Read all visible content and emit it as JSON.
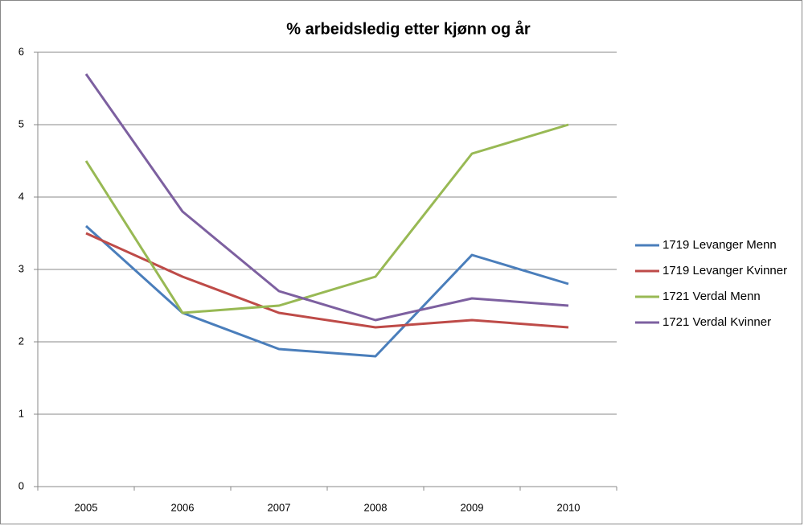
{
  "chart_data": {
    "type": "line",
    "title": "% arbeidsledig etter kjønn og år",
    "categories": [
      "2005",
      "2006",
      "2007",
      "2008",
      "2009",
      "2010"
    ],
    "series": [
      {
        "name": "1719 Levanger Menn",
        "color": "#4a7ebb",
        "values": [
          3.6,
          2.4,
          1.9,
          1.8,
          3.2,
          2.8
        ]
      },
      {
        "name": "1719 Levanger Kvinner",
        "color": "#be4b48",
        "values": [
          3.5,
          2.9,
          2.4,
          2.2,
          2.3,
          2.2
        ]
      },
      {
        "name": "1721 Verdal Menn",
        "color": "#98b954",
        "values": [
          4.5,
          2.4,
          2.5,
          2.9,
          4.6,
          5.0
        ]
      },
      {
        "name": "1721 Verdal Kvinner",
        "color": "#7d60a0",
        "values": [
          5.7,
          3.8,
          2.7,
          2.3,
          2.6,
          2.5
        ]
      }
    ],
    "ylim": [
      0,
      6
    ],
    "yticks": [
      0,
      1,
      2,
      3,
      4,
      5,
      6
    ],
    "grid": true,
    "legend": "right"
  }
}
